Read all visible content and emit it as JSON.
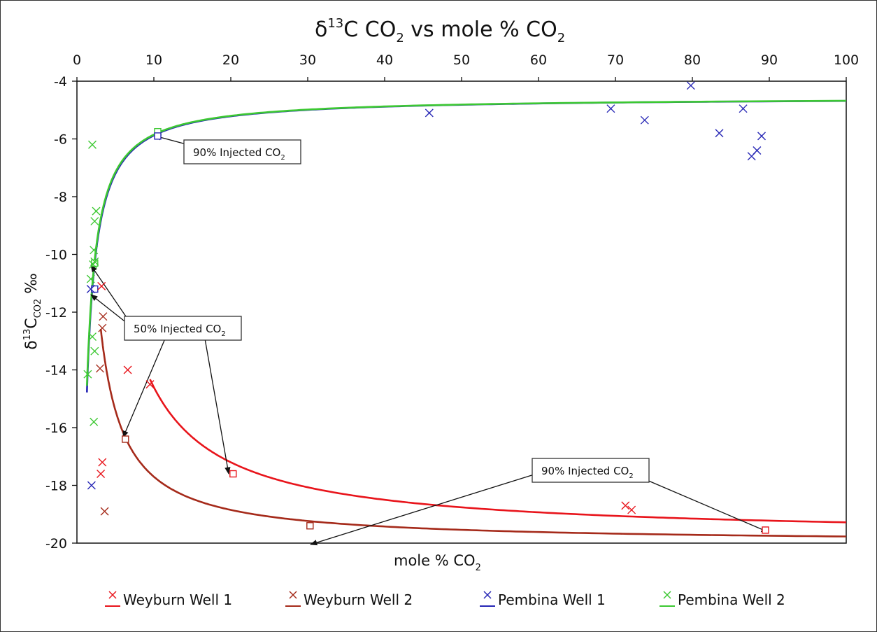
{
  "chart_data": {
    "type": "scatter",
    "title_main": "δ",
    "title_sup": "13",
    "title_rest1": "C CO",
    "title_sub": "2",
    "title_rest2": " vs mole % CO",
    "title_sub2": "2",
    "xlabel_main": "mole % CO",
    "xlabel_sub": "2",
    "ylabel_main": "δ",
    "ylabel_sup": "13",
    "ylabel_c": "C",
    "ylabel_sub": "CO2",
    "ylabel_unit": " ‰",
    "xlim": [
      0,
      100
    ],
    "ylim": [
      -20,
      -4
    ],
    "x_ticks": [
      0,
      10,
      20,
      30,
      40,
      50,
      60,
      70,
      80,
      90,
      100
    ],
    "y_ticks": [
      -4,
      -6,
      -8,
      -10,
      -12,
      -14,
      -16,
      -18,
      -20
    ],
    "x_axis_position": "top",
    "grid": false,
    "legend_position": "bottom",
    "series": [
      {
        "name": "Weyburn Well 1",
        "color": "#e8141b",
        "points": [
          [
            3.2,
            -11.1
          ],
          [
            6.6,
            -14.0
          ],
          [
            9.5,
            -14.5
          ],
          [
            3.3,
            -17.2
          ],
          [
            3.1,
            -17.6
          ],
          [
            71.3,
            -18.7
          ],
          [
            72.1,
            -18.85
          ]
        ],
        "mixing_curve": {
          "x_start": 9.5,
          "x_end": 100,
          "end_member": -19.8,
          "k": 52
        }
      },
      {
        "name": "Weyburn Well 2",
        "color": "#a52a1a",
        "points": [
          [
            3.4,
            -12.15
          ],
          [
            3.3,
            -12.55
          ],
          [
            3.0,
            -13.95
          ],
          [
            3.6,
            -18.9
          ]
        ],
        "mixing_curve": {
          "x_start": 3.1,
          "x_end": 100,
          "end_member": -20.0,
          "k": 23
        }
      },
      {
        "name": "Pembina Well 1",
        "color": "#2626b5",
        "points": [
          [
            1.8,
            -11.2
          ],
          [
            1.9,
            -18.0
          ],
          [
            45.8,
            -5.1
          ],
          [
            69.4,
            -4.95
          ],
          [
            73.8,
            -5.35
          ],
          [
            79.8,
            -4.15
          ],
          [
            83.5,
            -5.8
          ],
          [
            86.6,
            -4.95
          ],
          [
            87.7,
            -6.6
          ],
          [
            88.4,
            -6.4
          ],
          [
            89.0,
            -5.9
          ]
        ],
        "mixing_curve": {
          "x_start": 1.3,
          "x_end": 100,
          "end_member": -4.55,
          "k": -13.3
        }
      },
      {
        "name": "Pembina Well 2",
        "color": "#3cc832",
        "points": [
          [
            2.0,
            -6.2
          ],
          [
            2.5,
            -8.5
          ],
          [
            2.3,
            -8.85
          ],
          [
            2.2,
            -9.85
          ],
          [
            2.3,
            -10.25
          ],
          [
            2.1,
            -10.35
          ],
          [
            1.8,
            -10.85
          ],
          [
            2.0,
            -12.85
          ],
          [
            2.3,
            -13.35
          ],
          [
            1.4,
            -14.15
          ],
          [
            2.2,
            -15.8
          ]
        ],
        "mixing_curve": {
          "x_start": 1.3,
          "x_end": 100,
          "end_member": -4.55,
          "k": -13.0
        }
      }
    ],
    "markers": [
      {
        "x": 10.5,
        "y": -5.75,
        "color": "#3cc832"
      },
      {
        "x": 10.5,
        "y": -5.9,
        "color": "#2626b5"
      },
      {
        "x": 2.3,
        "y": -10.3,
        "color": "#3cc832"
      },
      {
        "x": 2.3,
        "y": -11.2,
        "color": "#2626b5"
      },
      {
        "x": 6.3,
        "y": -16.4,
        "color": "#a52a1a"
      },
      {
        "x": 20.3,
        "y": -17.6,
        "color": "#e8141b"
      },
      {
        "x": 30.3,
        "y": -19.4,
        "color": "#a52a1a"
      },
      {
        "x": 89.5,
        "y": -19.55,
        "color": "#e8141b"
      }
    ],
    "annotations": [
      {
        "id": "p90",
        "main": "90% Injected CO",
        "sub": "2"
      },
      {
        "id": "c50",
        "main": "50% Injected CO",
        "sub": "2"
      },
      {
        "id": "w90",
        "main": "90% Injected CO",
        "sub": "2"
      }
    ]
  }
}
